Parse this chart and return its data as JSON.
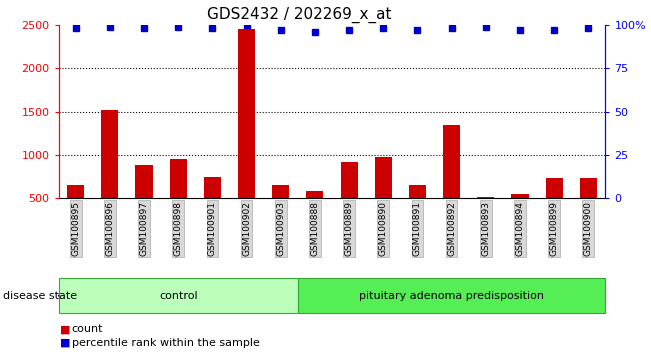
{
  "title": "GDS2432 / 202269_x_at",
  "samples": [
    "GSM100895",
    "GSM100896",
    "GSM100897",
    "GSM100898",
    "GSM100901",
    "GSM100902",
    "GSM100903",
    "GSM100888",
    "GSM100889",
    "GSM100890",
    "GSM100891",
    "GSM100892",
    "GSM100893",
    "GSM100894",
    "GSM100899",
    "GSM100900"
  ],
  "counts": [
    650,
    1520,
    880,
    950,
    740,
    2450,
    650,
    580,
    920,
    975,
    650,
    1350,
    510,
    545,
    730,
    730
  ],
  "percentiles": [
    98,
    99,
    98,
    99,
    98,
    100,
    97,
    96,
    97,
    98,
    97,
    98,
    99,
    97,
    97,
    98
  ],
  "control_count": 7,
  "disease_count": 9,
  "control_label": "control",
  "disease_label": "pituitary adenoma predisposition",
  "ylim_left": [
    500,
    2500
  ],
  "ylim_right": [
    0,
    100
  ],
  "yticks_left": [
    500,
    1000,
    1500,
    2000,
    2500
  ],
  "yticks_right": [
    0,
    25,
    50,
    75,
    100
  ],
  "bar_color": "#cc0000",
  "dot_color": "#0000cc",
  "bar_width": 0.5,
  "control_bg": "#bbffbb",
  "disease_bg": "#55ee55",
  "legend_count_label": "count",
  "legend_pct_label": "percentile rank within the sample",
  "disease_state_label": "disease state",
  "grid_vals": [
    1000,
    1500,
    2000
  ],
  "label_fontsize": 8,
  "tick_fontsize": 8,
  "title_fontsize": 11
}
